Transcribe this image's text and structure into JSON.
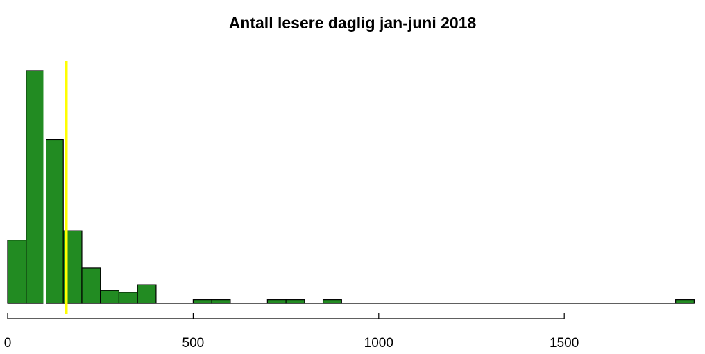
{
  "chart_data": {
    "type": "bar",
    "title": "Antall lesere daglig jan-juni 2018",
    "xlabel": "",
    "ylabel": "",
    "bin_width": 50,
    "bins": [
      {
        "start": 0,
        "end": 50,
        "count": 34
      },
      {
        "start": 50,
        "end": 100,
        "count": 125
      },
      {
        "start": 100,
        "end": 150,
        "count": 88
      },
      {
        "start": 150,
        "end": 200,
        "count": 39
      },
      {
        "start": 200,
        "end": 250,
        "count": 19
      },
      {
        "start": 250,
        "end": 300,
        "count": 7
      },
      {
        "start": 300,
        "end": 350,
        "count": 6
      },
      {
        "start": 350,
        "end": 400,
        "count": 10
      },
      {
        "start": 500,
        "end": 550,
        "count": 2
      },
      {
        "start": 550,
        "end": 600,
        "count": 2
      },
      {
        "start": 700,
        "end": 750,
        "count": 2
      },
      {
        "start": 750,
        "end": 800,
        "count": 2
      },
      {
        "start": 850,
        "end": 900,
        "count": 2
      },
      {
        "start": 1800,
        "end": 1850,
        "count": 2
      }
    ],
    "bar_color": "#228B22",
    "reference_lines": [
      {
        "x": 100,
        "color": "#FFFFFF"
      },
      {
        "x": 158,
        "color": "#FFFF00"
      }
    ],
    "xticks": [
      0,
      500,
      1000,
      1500
    ],
    "xtick_labels": [
      "0",
      "500",
      "1000",
      "1500"
    ],
    "xlim": [
      0,
      1850
    ],
    "ylim": [
      0,
      125
    ],
    "y_axis_shown": false,
    "grid": false
  }
}
